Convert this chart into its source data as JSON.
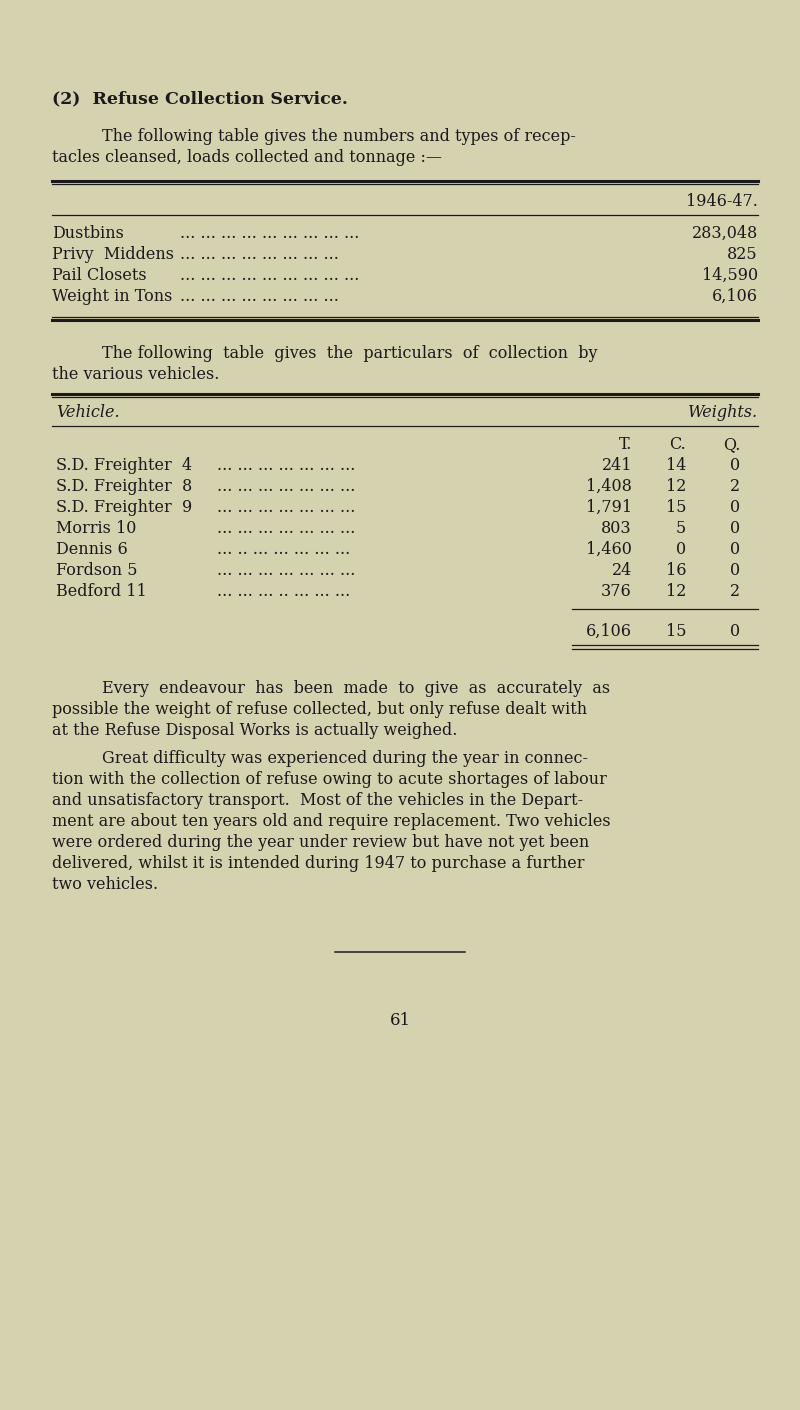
{
  "bg_color": "#d5d2b0",
  "text_color": "#1a1a1a",
  "page_number": "61",
  "title": "(2)  Refuse Collection Service.",
  "para1_line1": "The following table gives the numbers and types of recep-",
  "para1_line2": "tacles cleansed, loads collected and tonnage :—",
  "table1_header": "1946-47.",
  "table1_rows": [
    [
      "Dustbins",
      "... ... ... ... ... ... ... ... ...",
      "283,048"
    ],
    [
      "Privy  Middens",
      "... ... ... ... ... ... ... ...",
      "825"
    ],
    [
      "Pail Closets",
      "... ... ... ... ... ... ... ... ...",
      "14,590"
    ],
    [
      "Weight in Tons",
      "... ... ... ... ... ... ... ...",
      "6,106"
    ]
  ],
  "para2_line1": "The following  table  gives  the  particulars  of  collection  by",
  "para2_line2": "the various vehicles.",
  "table2_col1_header": "Vehicle.",
  "table2_col2_header": "Weights.",
  "table2_rows": [
    [
      "S.D. Freighter  4",
      "... ... ... ... ... ... ...",
      "241",
      "14",
      "0"
    ],
    [
      "S.D. Freighter  8",
      "... ... ... ... ... ... ...",
      "1,408",
      "12",
      "2"
    ],
    [
      "S.D. Freighter  9",
      "... ... ... ... ... ... ...",
      "1,791",
      "15",
      "0"
    ],
    [
      "Morris 10",
      "... ... ... ... ... ... ...",
      "803",
      "5",
      "0"
    ],
    [
      "Dennis 6",
      "... .. ... ... ... ... ...",
      "1,460",
      "0",
      "0"
    ],
    [
      "Fordson 5",
      "... ... ... ... ... ... ...",
      "24",
      "16",
      "0"
    ],
    [
      "Bedford 11",
      "... ... ... .. ... ... ...",
      "376",
      "12",
      "2"
    ]
  ],
  "table2_total": [
    "6,106",
    "15",
    "0"
  ],
  "para3_line1": "Every  endeavour  has  been  made  to  give  as  accurately  as",
  "para3_line2": "possible the weight of refuse collected, but only refuse dealt with",
  "para3_line3": "at the Refuse Disposal Works is actually weighed.",
  "para4_line1": "Great difficulty was experienced during the year in connec-",
  "para4_line2": "tion with the collection of refuse owing to acute shortages of labour",
  "para4_line3": "and unsatisfactory transport.  Most of the vehicles in the Depart-",
  "para4_line4": "ment are about ten years old and require replacement. Two vehicles",
  "para4_line5": "were ordered during the year under review but have not yet been",
  "para4_line6": "delivered, whilst it is intended during 1947 to purchase a further",
  "para4_line7": "two vehicles."
}
